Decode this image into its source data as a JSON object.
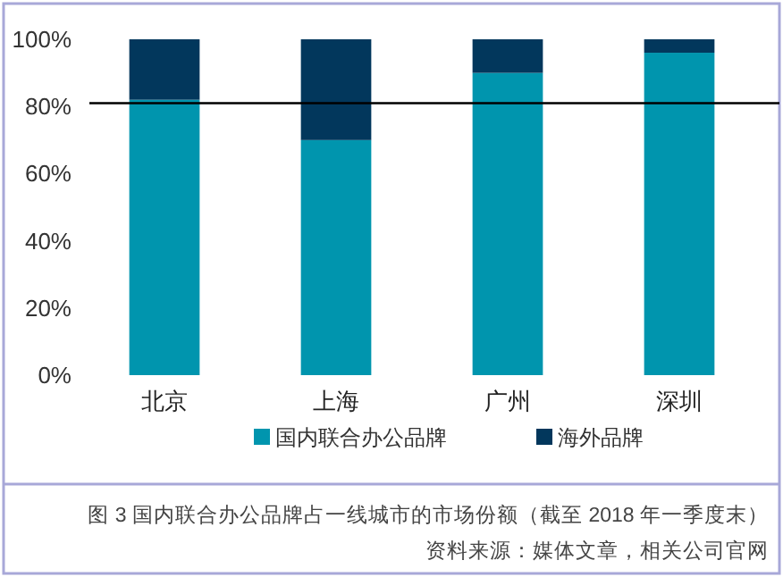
{
  "chart_data": {
    "type": "bar",
    "stacked": true,
    "title": "图 3 国内联合办公品牌占一线城市的市场份额（截至 2018 年一季度末）",
    "annotations": [
      "资料来源：媒体文章，相关公司官网"
    ],
    "categories": [
      "北京",
      "上海",
      "广州",
      "深圳"
    ],
    "series": [
      {
        "name": "国内联合办公品牌",
        "color": "#0095ae",
        "values": [
          82,
          70,
          90,
          96
        ]
      },
      {
        "name": "海外品牌",
        "color": "#02375c",
        "values": [
          18,
          30,
          10,
          4
        ]
      }
    ],
    "ylim": [
      0,
      100
    ],
    "yticks": [
      {
        "value": 0,
        "label": "0%"
      },
      {
        "value": 20,
        "label": "20%"
      },
      {
        "value": 40,
        "label": "40%"
      },
      {
        "value": 60,
        "label": "60%"
      },
      {
        "value": 80,
        "label": "80%"
      },
      {
        "value": 100,
        "label": "100%"
      }
    ],
    "ref_lines": [
      {
        "axis": "y",
        "value": 81,
        "label": null,
        "color": "#000000",
        "line_style": "solid"
      }
    ],
    "legend": "bottom",
    "grid": false
  }
}
